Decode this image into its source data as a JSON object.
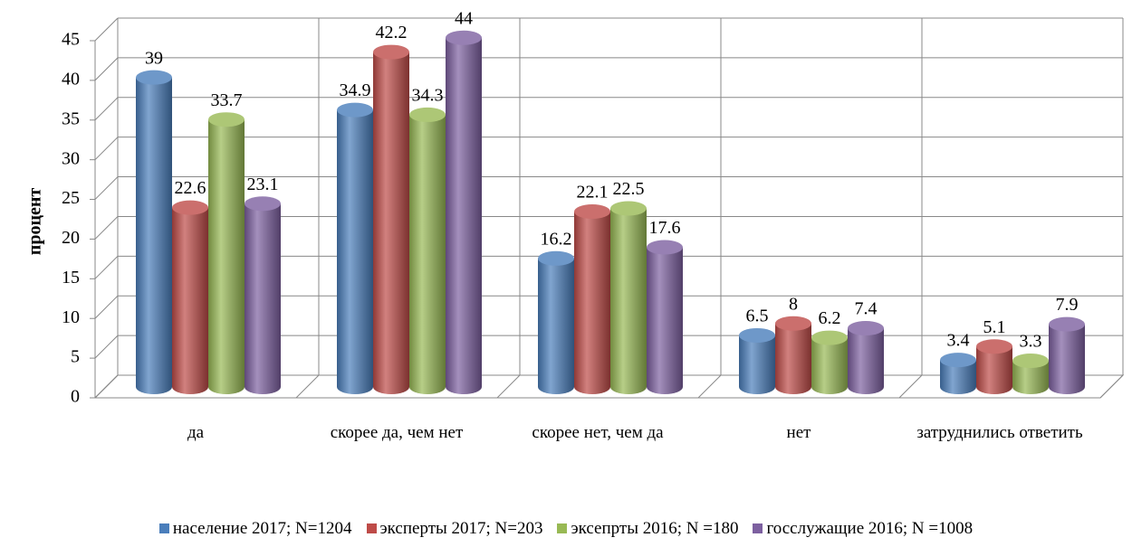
{
  "chart_data": {
    "type": "bar3d",
    "y_label": "процент",
    "categories": [
      "да",
      "скорее да, чем нет",
      "скорее нет, чем да",
      "нет",
      "затруднились ответить"
    ],
    "series": [
      {
        "name": "население 2017; N=1204",
        "color": "#4a7ebb",
        "values": [
          39,
          34.9,
          16.2,
          6.5,
          3.4
        ]
      },
      {
        "name": "эксперты 2017; N=203",
        "color": "#be4b48",
        "values": [
          22.6,
          42.2,
          22.1,
          8,
          5.1
        ]
      },
      {
        "name": "эксепрты 2016; N =180",
        "color": "#98b954",
        "values": [
          33.7,
          34.3,
          22.5,
          6.2,
          3.3
        ]
      },
      {
        "name": "госслужащие 2016; N =1008",
        "color": "#7d60a0",
        "values": [
          23.1,
          44,
          17.6,
          7.4,
          7.9
        ]
      }
    ],
    "ylim": [
      0,
      45
    ],
    "yticks": [
      0,
      5,
      10,
      15,
      20,
      25,
      30,
      35,
      40,
      45
    ],
    "grid": true,
    "legend": "bottom"
  }
}
